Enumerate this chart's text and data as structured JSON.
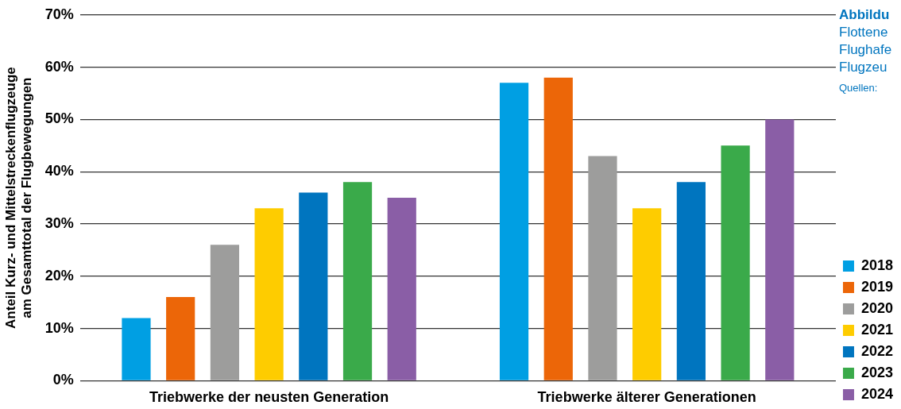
{
  "chart_data": {
    "type": "bar",
    "ylabel": "Anteil Kurz- und Mittelstreckenflugzeuge\nam Gesamttotal der Flugbewegungen",
    "categories": [
      "Triebwerke der neusten Generation",
      "Triebwerke älterer Generationen"
    ],
    "series": [
      {
        "name": "2018",
        "color": "#009fe3",
        "values": [
          12,
          57
        ]
      },
      {
        "name": "2019",
        "color": "#ec6608",
        "values": [
          16,
          58
        ]
      },
      {
        "name": "2020",
        "color": "#9d9d9c",
        "values": [
          26,
          43
        ]
      },
      {
        "name": "2021",
        "color": "#fecc00",
        "values": [
          33,
          33
        ]
      },
      {
        "name": "2022",
        "color": "#0075bf",
        "values": [
          36,
          38
        ]
      },
      {
        "name": "2023",
        "color": "#3aaa4a",
        "values": [
          38,
          45
        ]
      },
      {
        "name": "2024",
        "color": "#8a5ea6",
        "values": [
          35,
          50
        ]
      }
    ],
    "ylim": [
      0,
      70
    ],
    "yticks": [
      {
        "value": 0,
        "label": "0%"
      },
      {
        "value": 10,
        "label": "10%"
      },
      {
        "value": 20,
        "label": "20%"
      },
      {
        "value": 30,
        "label": "30%"
      },
      {
        "value": 40,
        "label": "40%"
      },
      {
        "value": 50,
        "label": "50%"
      },
      {
        "value": 60,
        "label": "60%"
      },
      {
        "value": 70,
        "label": "70%"
      }
    ],
    "grid": "y",
    "legend": "bottom right",
    "annotations": [
      "Abbildu",
      "Flottene",
      "Flughafe",
      "Flugzeu",
      "Quellen:"
    ]
  }
}
